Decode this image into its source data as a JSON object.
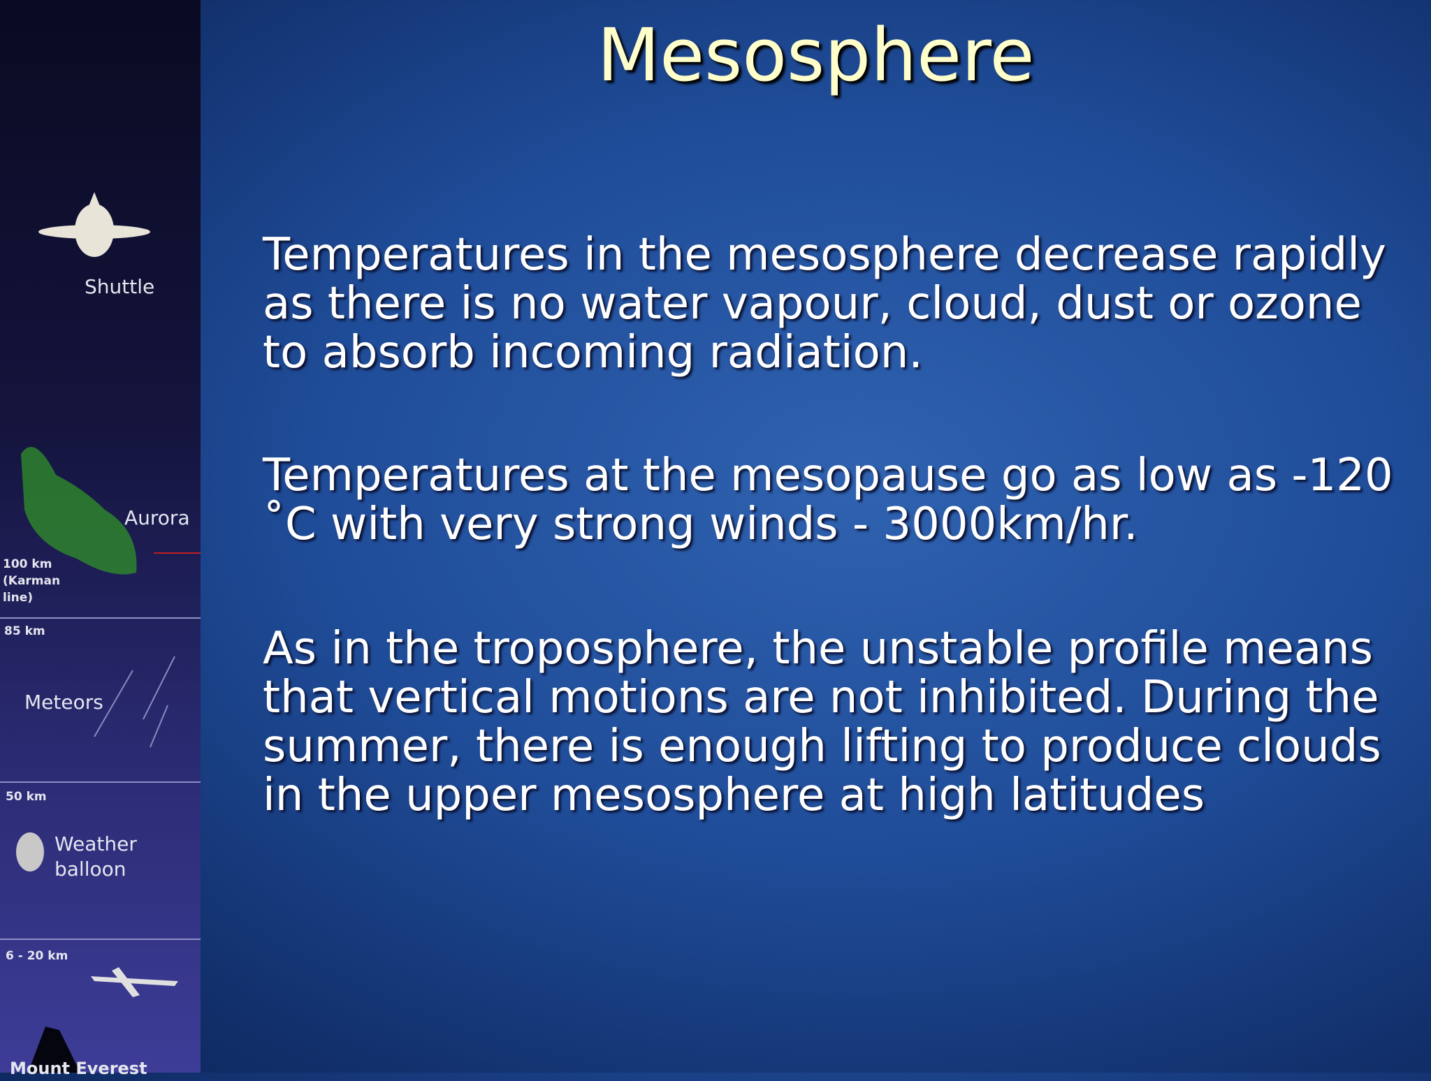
{
  "slide": {
    "title": "Mesosphere",
    "paragraphs": [
      "Temperatures in the mesosphere decrease rapidly as there is no water vapour, cloud, dust or ozone to absorb incoming radiation.",
      "Temperatures at the mesopause go as low as -120 ˚C with very strong winds - 3000km/hr.",
      "As in the troposphere, the unstable profile means that vertical motions are not inhibited. During the summer, there is enough lifting to produce clouds in the upper mesosphere at high latitudes"
    ],
    "sidebar": {
      "shuttle": "Shuttle",
      "aurora": "Aurora",
      "karman": [
        "100 km",
        "(Karman",
        "line)"
      ],
      "mesopause": "85 km",
      "meteors": "Meteors",
      "stratopause": "50 km",
      "balloon": [
        "Weather",
        "balloon"
      ],
      "tropopause": "6 - 20 km",
      "everest": "Mount Everest"
    }
  }
}
